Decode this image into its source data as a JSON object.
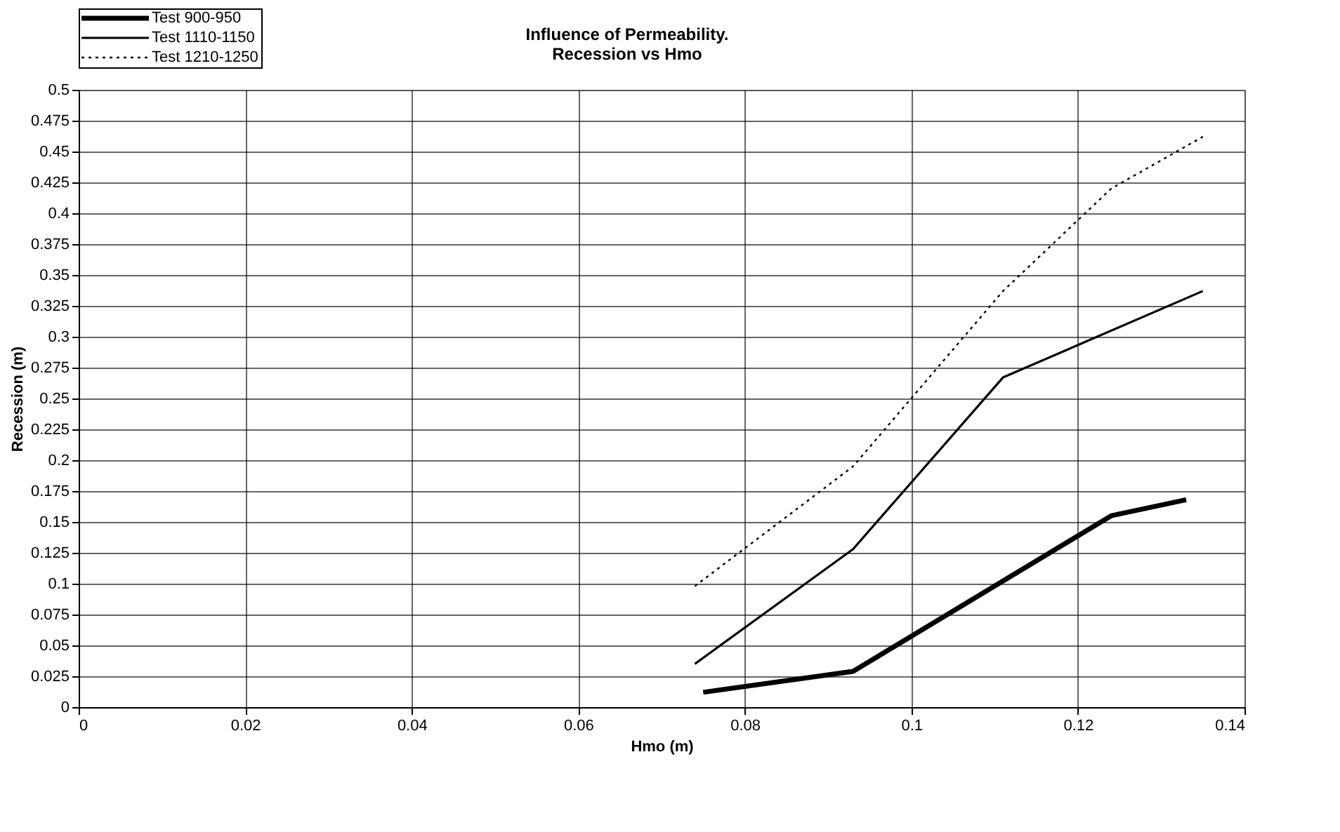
{
  "chart_data": {
    "type": "line",
    "title": [
      "Influence of Permeability.",
      "Recession vs Hmo"
    ],
    "xlabel": "Hmo (m)",
    "ylabel": "Recession (m)",
    "xlim": [
      0,
      0.14
    ],
    "xticks": [
      0,
      0.02,
      0.04,
      0.06,
      0.08,
      0.1,
      0.12,
      0.14
    ],
    "ylim": [
      0,
      0.5
    ],
    "yticks": [
      0,
      0.025,
      0.05,
      0.075,
      0.1,
      0.125,
      0.15,
      0.175,
      0.2,
      0.225,
      0.25,
      0.275,
      0.3,
      0.325,
      0.35,
      0.375,
      0.4,
      0.425,
      0.45,
      0.475,
      0.5
    ],
    "grid": true,
    "legend": "top left",
    "marker": "none",
    "series": [
      {
        "name": "Test 900-950",
        "color": "#000000",
        "line_style": "solid",
        "x": [
          0.075,
          0.093,
          0.124,
          0.133
        ],
        "values": [
          0.012,
          0.029,
          0.155,
          0.168
        ]
      },
      {
        "name": "Test 1110-1150",
        "color": "#000000",
        "line_style": "solid",
        "x": [
          0.074,
          0.093,
          0.111,
          0.135
        ],
        "values": [
          0.035,
          0.128,
          0.267,
          0.337
        ]
      },
      {
        "name": "Test 1210-1250",
        "color": "#000000",
        "line_style": "dotted",
        "x": [
          0.074,
          0.093,
          0.111,
          0.124,
          0.135
        ],
        "values": [
          0.098,
          0.195,
          0.337,
          0.42,
          0.462
        ]
      }
    ]
  }
}
